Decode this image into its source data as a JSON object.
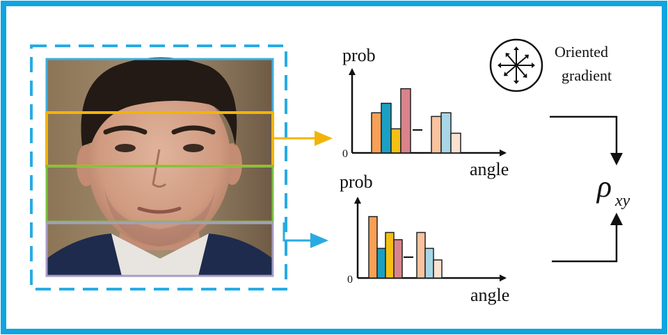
{
  "colors": {
    "frame": "#0ea5e0",
    "dashed_box": "#29abe2",
    "strip_top": "#41aedb",
    "strip_eye": "#f2b40a",
    "strip_mid": "#7cc142",
    "strip_bottom": "#a89cc8",
    "arrow_top": "#f2b40a",
    "arrow_bottom": "#29abe2"
  },
  "labels": {
    "y_axis_top": "prob",
    "x_axis_top": "angle",
    "zero_top": "0",
    "y_axis_bottom": "prob",
    "x_axis_bottom": "angle",
    "zero_bottom": "0",
    "oriented_line1": "Oriented",
    "oriented_line2": "gradient",
    "rho": "ρ",
    "rho_sub": "xy"
  },
  "icons": {
    "oriented_gradient": "oriented-gradient-icon",
    "face": "face-photo"
  },
  "chart_data": [
    {
      "type": "bar",
      "ylabel": "prob",
      "xlabel": "angle",
      "groups": [
        {
          "values": [
            0.55,
            0.68,
            0.33,
            0.88
          ],
          "colors": [
            "#f8a055",
            "#1aa0c4",
            "#f5c013",
            "#d9848c"
          ]
        },
        {
          "values": [
            0.5,
            0.55,
            0.27
          ],
          "colors": [
            "#f9c39f",
            "#a7d6e6",
            "#fbe1d0"
          ]
        }
      ]
    },
    {
      "type": "bar",
      "ylabel": "prob",
      "xlabel": "angle",
      "groups": [
        {
          "values": [
            0.85,
            0.41,
            0.63,
            0.53
          ],
          "colors": [
            "#f8a055",
            "#1aa0c4",
            "#f5c013",
            "#d9848c"
          ]
        },
        {
          "values": [
            0.63,
            0.41,
            0.25
          ],
          "colors": [
            "#f9c39f",
            "#a7d6e6",
            "#fbe1d0"
          ]
        }
      ]
    }
  ]
}
